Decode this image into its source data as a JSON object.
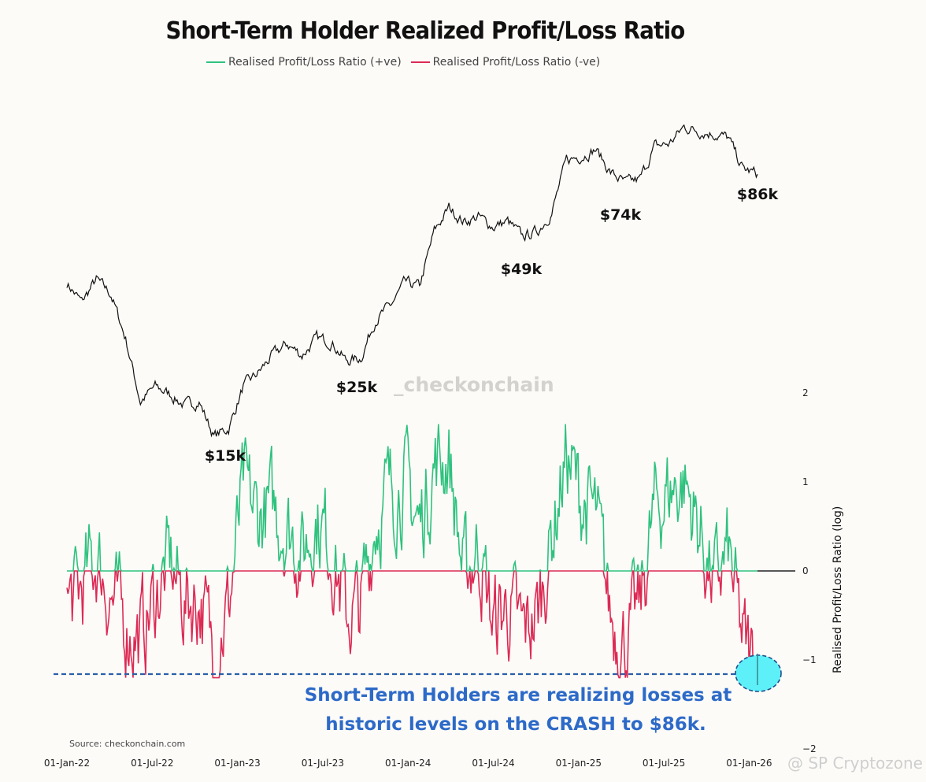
{
  "chart_data": {
    "type": "line",
    "title": "Short-Term Holder Realized Profit/Loss Ratio",
    "legend": [
      {
        "name": "Realised Profit/Loss Ratio (+ve)",
        "color": "#2ec27e"
      },
      {
        "name": "Realised Profit/Loss Ratio (-ve)",
        "color": "#dc2a54"
      }
    ],
    "legend_position": "top-center",
    "xlabel": "",
    "ylabel": "Realised Profit/Loss Ratio (log)",
    "x_ticks": [
      "01-Jan-22",
      "01-Jul-22",
      "01-Jan-23",
      "01-Jul-23",
      "01-Jan-24",
      "01-Jul-24",
      "01-Jan-25",
      "01-Jul-25",
      "01-Jan-26"
    ],
    "y_ticks": [
      "2",
      "1",
      "0",
      "−1",
      "−2"
    ],
    "ylim": [
      -2,
      2
    ],
    "grid": false,
    "price_series": {
      "name": "BTC price (overlay)",
      "color": "#111111",
      "x": [
        "2022-01",
        "2022-02",
        "2022-03",
        "2022-04",
        "2022-05",
        "2022-06",
        "2022-07",
        "2022-08",
        "2022-09",
        "2022-10",
        "2022-11",
        "2022-12",
        "2023-01",
        "2023-02",
        "2023-03",
        "2023-04",
        "2023-05",
        "2023-06",
        "2023-07",
        "2023-08",
        "2023-09",
        "2023-10",
        "2023-11",
        "2023-12",
        "2024-01",
        "2024-02",
        "2024-03",
        "2024-04",
        "2024-05",
        "2024-06",
        "2024-07",
        "2024-08",
        "2024-09",
        "2024-10",
        "2024-11",
        "2024-12",
        "2025-01",
        "2025-02",
        "2025-03",
        "2025-04",
        "2025-05",
        "2025-06",
        "2025-07",
        "2025-08",
        "2025-09",
        "2025-10",
        "2025-11",
        "2025-12"
      ],
      "values": [
        43,
        38,
        44,
        40,
        30,
        20,
        22,
        21,
        19.5,
        20,
        16,
        16.8,
        22,
        24,
        27,
        29,
        27,
        30,
        29.5,
        26,
        26.5,
        34,
        37,
        43,
        42,
        60,
        70,
        64,
        66,
        62,
        64,
        58,
        60,
        68,
        95,
        98,
        102,
        88,
        82,
        84,
        104,
        106,
        118,
        115,
        113,
        110,
        90,
        87
      ]
    },
    "price_annotations": [
      "$15k",
      "$25k",
      "$49k",
      "$74k",
      "$86k"
    ],
    "ratio_series": {
      "x": [
        "2022-01",
        "2022-02",
        "2022-03",
        "2022-04",
        "2022-05",
        "2022-06",
        "2022-07",
        "2022-08",
        "2022-09",
        "2022-10",
        "2022-11",
        "2022-12",
        "2023-01",
        "2023-02",
        "2023-03",
        "2023-04",
        "2023-05",
        "2023-06",
        "2023-07",
        "2023-08",
        "2023-09",
        "2023-10",
        "2023-11",
        "2023-12",
        "2024-01",
        "2024-02",
        "2024-03",
        "2024-04",
        "2024-05",
        "2024-06",
        "2024-07",
        "2024-08",
        "2024-09",
        "2024-10",
        "2024-11",
        "2024-12",
        "2025-01",
        "2025-02",
        "2025-03",
        "2025-04",
        "2025-05",
        "2025-06",
        "2025-07",
        "2025-08",
        "2025-09",
        "2025-10",
        "2025-11",
        "2025-12"
      ],
      "values": [
        -0.4,
        -0.2,
        0.15,
        -0.3,
        -0.6,
        -0.75,
        -0.3,
        0.1,
        -0.35,
        -0.3,
        -0.9,
        -0.4,
        0.9,
        0.6,
        0.7,
        0.5,
        0.2,
        0.6,
        0.3,
        -0.5,
        -0.4,
        0.6,
        0.9,
        1.0,
        0.5,
        1.2,
        1.3,
        -0.1,
        0.3,
        -0.6,
        -0.4,
        -0.7,
        -0.5,
        0.4,
        1.3,
        0.8,
        0.6,
        -0.5,
        -0.8,
        -0.4,
        0.7,
        0.9,
        1.0,
        0.5,
        -0.2,
        0.2,
        -0.8,
        -1.15
      ]
    },
    "annotations": [
      "Short-Term Holders are realizing losses at",
      "historic levels on the CRASH to $86k."
    ],
    "source": "Source: checkonchain.com",
    "watermark": "_checkonchain",
    "credit": "@ SP Cryptozone"
  }
}
